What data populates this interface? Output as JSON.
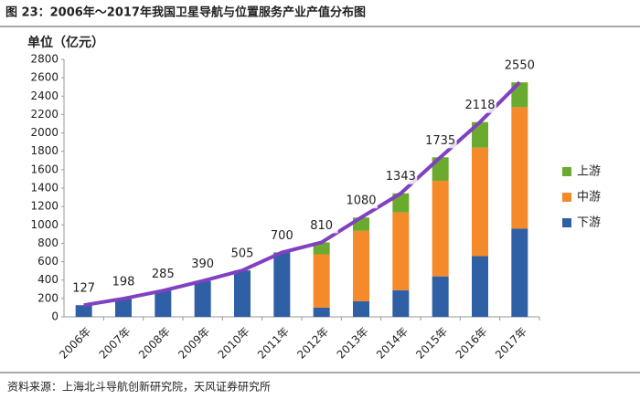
{
  "caption": "图 23：2006年～2017年我国卫星导航与位置服务产业产值分布图",
  "source": "资料来源：上海北斗导航创新研究院，天风证券研究所",
  "chart_data": {
    "type": "stacked-bar",
    "y_label": "单位（亿元）",
    "categories": [
      "2006年",
      "2007年",
      "2008年",
      "2009年",
      "2010年",
      "2011年",
      "2012年",
      "2013年",
      "2014年",
      "2015年",
      "2016年",
      "2017年"
    ],
    "series": [
      {
        "name": "下游",
        "color": "#2f5fa5",
        "values": [
          127,
          198,
          285,
          390,
          505,
          700,
          100,
          170,
          290,
          440,
          660,
          960
        ]
      },
      {
        "name": "中游",
        "color": "#f48a2a",
        "values": [
          null,
          null,
          null,
          null,
          null,
          null,
          580,
          765,
          845,
          1040,
          1180,
          1320
        ]
      },
      {
        "name": "上游",
        "color": "#6aaa2e",
        "values": [
          null,
          null,
          null,
          null,
          null,
          null,
          130,
          145,
          208,
          255,
          278,
          270
        ]
      }
    ],
    "line": {
      "color": "#8040c0",
      "values": [
        127,
        198,
        285,
        390,
        505,
        700,
        810,
        1080,
        1343,
        1735,
        2118,
        2550
      ]
    },
    "ylim": [
      0,
      2800
    ],
    "yticks": [
      0,
      200,
      400,
      600,
      800,
      1000,
      1200,
      1400,
      1600,
      1800,
      2000,
      2200,
      2400,
      2600,
      2800
    ],
    "grid": false,
    "legend": "right"
  }
}
